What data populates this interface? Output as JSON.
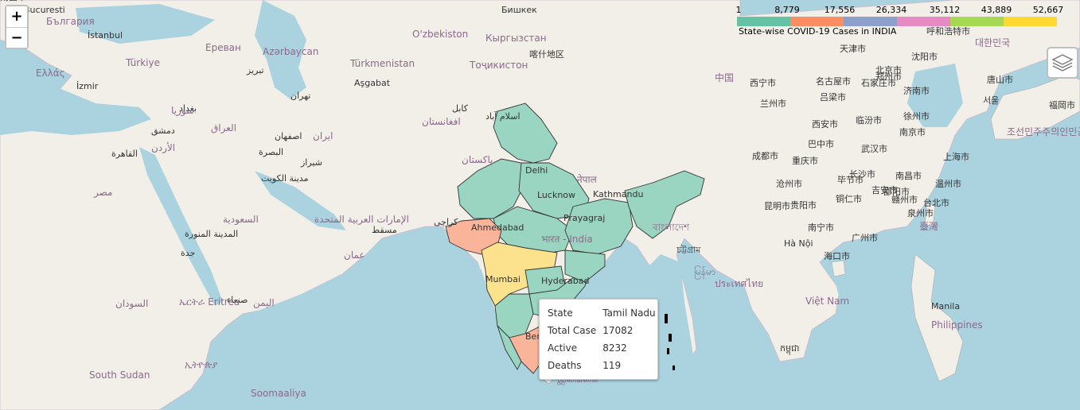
{
  "map": {
    "legend": {
      "ticks": [
        "1",
        "8,779",
        "17,556",
        "26,334",
        "35,112",
        "43,889",
        "52,667"
      ],
      "caption": "State-wise COVID-19 Cases in INDIA",
      "colors": [
        "#66c2a5",
        "#fc8d62",
        "#8da0cb",
        "#e78ac3",
        "#a6d854",
        "#ffd92f"
      ]
    },
    "zoom": {
      "in_label": "+",
      "out_label": "−"
    },
    "layers_icon": "layers-icon",
    "tooltip": {
      "rows": [
        {
          "label": "State",
          "value": "Tamil Nadu"
        },
        {
          "label": "Total Case",
          "value": "17082"
        },
        {
          "label": "Active",
          "value": "8232"
        },
        {
          "label": "Deaths",
          "value": "119"
        }
      ]
    },
    "state_colors": {
      "low": "#99d5c0",
      "mid": "#f9b49a",
      "high": "#fde28e"
    },
    "labels": [
      "Bucuresti",
      "България",
      "İstanbul",
      "Türkiye",
      "İzmir",
      "Ελλάς",
      "Ереван",
      "Azərbaycan",
      "تبريز",
      "Türkmenistan",
      "Aşgabat",
      "O'zbekiston",
      "Бишкек",
      "Кыргызстан",
      "Тоҷикистон",
      "喀什地区",
      "كابل",
      "افغانستان",
      "اسلام آباد",
      "پاکستان",
      "تهران",
      "ایران",
      "اصفهان",
      "شیراز",
      "العراق",
      "بغداد",
      "سوريا",
      "دمشق",
      "الأردن",
      "القاهرة",
      "مصر",
      "البصرة",
      "مدينة الكويت",
      "الإمارات العربية المتحدة",
      "مسقط",
      "عمان",
      "السعودية",
      "المدينة المنورة",
      "جدة",
      "السودان",
      "صنعاء",
      "اليمن",
      "ኤርትራ Eritrea",
      "ኢትዮጵያ",
      "South Sudan",
      "Soomaaliya",
      "کراچی",
      "Ahmedabad",
      "Mumbai",
      "Hyderabad",
      "Bengaluru",
      "Delhi",
      "Lucknow",
      "Kathmandu",
      "नेपाल",
      "Prayagraj",
      "भारत - India",
      "বাংলাদেশ",
      "চট্টগ্রাম",
      "မြန်မာ",
      "ประเทศไทย",
      "Việt Nam",
      "Hà Nội",
      "កម្ពុជា",
      "Manila",
      "Philippines",
      "இலங்கை",
      "中国",
      "西宁市",
      "兰州市",
      "西安市",
      "成都市",
      "重庆市",
      "巴中市",
      "武汉市",
      "长沙市",
      "南昌市",
      "贵阳市",
      "昆明市",
      "南宁市",
      "广州市",
      "海口市",
      "台北市",
      "臺灣",
      "泉州市",
      "温州市",
      "上海市",
      "南京市",
      "徐州市",
      "济南市",
      "石家庄市",
      "北京市",
      "天津市",
      "呼和浩特市",
      "沈阳市",
      "唐山市",
      "서울",
      "대한민국",
      "조선민주주의인민공화국",
      "福岡市",
      "名古屋市",
      "吕梁市",
      "临汾市",
      "郑州市",
      "沧州市",
      "毕节市",
      "铜仁市",
      "邵阳市",
      "吉安市",
      "赣州市",
      "南昌市"
    ]
  }
}
